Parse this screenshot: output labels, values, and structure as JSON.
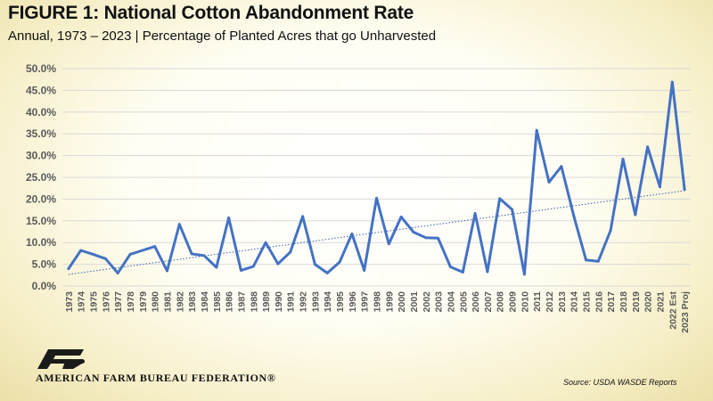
{
  "header": {
    "title": "FIGURE 1: National Cotton Abandonment Rate",
    "subtitle": "Annual, 1973 – 2023 | Percentage of Planted Acres that go Unharvested"
  },
  "footer": {
    "organization": "AMERICAN FARM BUREAU FEDERATION®",
    "source": "Source: USDA WASDE Reports"
  },
  "colors": {
    "line": "#4472c4",
    "trend": "#3b5ea8",
    "grid": "#d9d9d9",
    "text": "#595959",
    "logo": "#1a1a1a"
  },
  "chart_data": {
    "type": "line",
    "title": "FIGURE 1: National Cotton Abandonment Rate",
    "xlabel": "",
    "ylabel": "",
    "ylim": [
      0,
      50
    ],
    "yticks": [
      "0.0%",
      "5.0%",
      "10.0%",
      "15.0%",
      "20.0%",
      "25.0%",
      "30.0%",
      "35.0%",
      "40.0%",
      "45.0%",
      "50.0%"
    ],
    "grid": true,
    "legend": "none",
    "trendline": "linear",
    "categories": [
      "1973",
      "1974",
      "1975",
      "1976",
      "1977",
      "1978",
      "1979",
      "1980",
      "1981",
      "1982",
      "1983",
      "1984",
      "1985",
      "1986",
      "1987",
      "1988",
      "1989",
      "1990",
      "1991",
      "1992",
      "1993",
      "1994",
      "1995",
      "1996",
      "1997",
      "1998",
      "1999",
      "2000",
      "2001",
      "2002",
      "2003",
      "2004",
      "2005",
      "2006",
      "2007",
      "2008",
      "2009",
      "2010",
      "2011",
      "2012",
      "2013",
      "2014",
      "2015",
      "2016",
      "2017",
      "2018",
      "2019",
      "2020",
      "2021",
      "2022 Est",
      "2023 Proj"
    ],
    "series": [
      {
        "values": [
          4.0,
          8.2,
          7.3,
          6.3,
          3.0,
          7.3,
          8.2,
          9.1,
          3.5,
          14.2,
          7.4,
          7.0,
          4.3,
          15.7,
          3.6,
          4.5,
          10.0,
          5.1,
          7.8,
          16.0,
          5.0,
          3.0,
          5.5,
          12.0,
          3.6,
          20.2,
          9.7,
          15.9,
          12.4,
          11.1,
          11.0,
          4.4,
          3.2,
          16.7,
          3.3,
          20.1,
          17.6,
          2.7,
          35.8,
          23.9,
          27.5,
          16.2,
          6.0,
          5.7,
          12.8,
          29.2,
          16.4,
          32.0,
          22.8,
          46.9,
          22.2
        ]
      }
    ]
  }
}
